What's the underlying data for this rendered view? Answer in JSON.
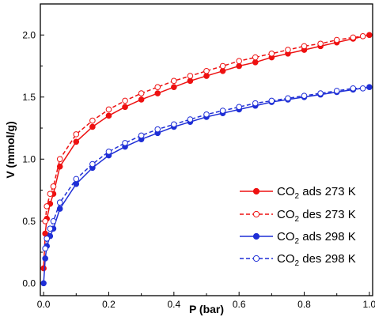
{
  "chart_data": {
    "type": "line",
    "xlabel": "P (bar)",
    "ylabel": "V (mmol/g)",
    "xlim": [
      -0.01,
      1.01
    ],
    "ylim": [
      -0.1,
      2.25
    ],
    "x_ticks": [
      {
        "value": 0.0,
        "label": "0.0"
      },
      {
        "value": 0.2,
        "label": "0.2"
      },
      {
        "value": 0.4,
        "label": "0.4"
      },
      {
        "value": 0.6,
        "label": "0.6"
      },
      {
        "value": 0.8,
        "label": "0.8"
      },
      {
        "value": 1.0,
        "label": "1.0"
      }
    ],
    "y_ticks": [
      {
        "value": 0.0,
        "label": "0.0"
      },
      {
        "value": 0.5,
        "label": "0.5"
      },
      {
        "value": 1.0,
        "label": "1.0"
      },
      {
        "value": 1.5,
        "label": "1.5"
      },
      {
        "value": 2.0,
        "label": "2.0"
      }
    ],
    "grid": false,
    "legend_position": "bottom-right",
    "series": [
      {
        "label_main": "CO",
        "label_sub": "2",
        "label_rest": " ads 273 K",
        "color": "#ee1111",
        "marker": "filled-circle",
        "line_style": "solid",
        "x": [
          0.0,
          0.005,
          0.01,
          0.02,
          0.03,
          0.05,
          0.1,
          0.15,
          0.2,
          0.25,
          0.3,
          0.35,
          0.4,
          0.45,
          0.5,
          0.55,
          0.6,
          0.65,
          0.7,
          0.75,
          0.8,
          0.85,
          0.9,
          0.95,
          1.0
        ],
        "y": [
          0.12,
          0.4,
          0.52,
          0.64,
          0.72,
          0.94,
          1.14,
          1.26,
          1.35,
          1.42,
          1.48,
          1.53,
          1.58,
          1.63,
          1.67,
          1.71,
          1.75,
          1.78,
          1.82,
          1.85,
          1.88,
          1.91,
          1.94,
          1.97,
          2.0
        ]
      },
      {
        "label_main": "CO",
        "label_sub": "2",
        "label_rest": " des 273 K",
        "color": "#ee1111",
        "marker": "open-circle",
        "line_style": "dashed",
        "x": [
          0.005,
          0.01,
          0.02,
          0.03,
          0.05,
          0.1,
          0.15,
          0.2,
          0.25,
          0.3,
          0.35,
          0.4,
          0.45,
          0.5,
          0.55,
          0.6,
          0.65,
          0.7,
          0.75,
          0.8,
          0.85,
          0.9,
          0.95,
          0.98
        ],
        "y": [
          0.5,
          0.62,
          0.72,
          0.78,
          1.0,
          1.2,
          1.31,
          1.4,
          1.47,
          1.53,
          1.58,
          1.63,
          1.67,
          1.71,
          1.75,
          1.79,
          1.82,
          1.85,
          1.88,
          1.91,
          1.93,
          1.96,
          1.98,
          1.99
        ]
      },
      {
        "label_main": "CO",
        "label_sub": "2",
        "label_rest": " ads 298 K",
        "color": "#1f2fd6",
        "marker": "filled-circle",
        "line_style": "solid",
        "x": [
          0.0,
          0.005,
          0.01,
          0.02,
          0.03,
          0.05,
          0.1,
          0.15,
          0.2,
          0.25,
          0.3,
          0.35,
          0.4,
          0.45,
          0.5,
          0.55,
          0.6,
          0.65,
          0.7,
          0.75,
          0.8,
          0.85,
          0.9,
          0.95,
          1.0
        ],
        "y": [
          0.0,
          0.2,
          0.3,
          0.38,
          0.44,
          0.6,
          0.8,
          0.93,
          1.03,
          1.1,
          1.16,
          1.21,
          1.26,
          1.3,
          1.34,
          1.37,
          1.4,
          1.43,
          1.46,
          1.48,
          1.5,
          1.52,
          1.54,
          1.56,
          1.58
        ]
      },
      {
        "label_main": "CO",
        "label_sub": "2",
        "label_rest": " des 298 K",
        "color": "#1f2fd6",
        "marker": "open-circle",
        "line_style": "dashed",
        "x": [
          0.005,
          0.01,
          0.02,
          0.03,
          0.05,
          0.1,
          0.15,
          0.2,
          0.25,
          0.3,
          0.35,
          0.4,
          0.45,
          0.5,
          0.55,
          0.6,
          0.65,
          0.7,
          0.75,
          0.8,
          0.85,
          0.9,
          0.95,
          0.98
        ],
        "y": [
          0.28,
          0.36,
          0.44,
          0.5,
          0.65,
          0.84,
          0.96,
          1.06,
          1.13,
          1.19,
          1.24,
          1.28,
          1.32,
          1.36,
          1.39,
          1.42,
          1.45,
          1.47,
          1.49,
          1.51,
          1.53,
          1.55,
          1.57,
          1.57
        ]
      }
    ]
  }
}
